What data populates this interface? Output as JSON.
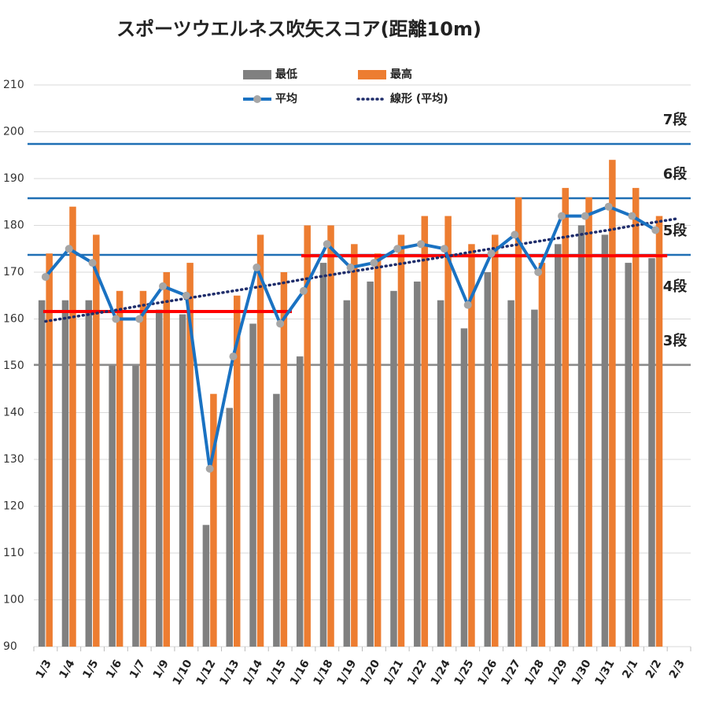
{
  "chart_data": {
    "type": "bar_line",
    "title": "スポーツウエルネス吹矢スコア(距離10m)",
    "categories": [
      "1/3",
      "1/4",
      "1/5",
      "1/6",
      "1/7",
      "1/9",
      "1/10",
      "1/12",
      "1/13",
      "1/14",
      "1/15",
      "1/16",
      "1/18",
      "1/19",
      "1/20",
      "1/21",
      "1/22",
      "1/24",
      "1/25",
      "1/26",
      "1/27",
      "1/28",
      "1/29",
      "1/30",
      "1/31",
      "2/1",
      "2/2",
      "2/3"
    ],
    "ylim": [
      90,
      210
    ],
    "yticks": [
      90,
      100,
      110,
      120,
      130,
      140,
      150,
      160,
      170,
      180,
      190,
      200,
      210
    ],
    "grid": true,
    "bars": [
      {
        "name": "最低",
        "color": "#808080",
        "values": [
          164,
          164,
          164,
          150,
          150,
          162,
          161,
          116,
          141,
          159,
          144,
          152,
          172,
          164,
          168,
          166,
          168,
          164,
          158,
          170,
          164,
          162,
          176,
          180,
          178,
          172,
          173,
          null
        ]
      },
      {
        "name": "最高",
        "color": "#ed7d31",
        "values": [
          174,
          184,
          178,
          166,
          166,
          170,
          172,
          144,
          165,
          178,
          170,
          180,
          180,
          176,
          174,
          178,
          182,
          182,
          176,
          178,
          186,
          172,
          188,
          186,
          194,
          188,
          182,
          null
        ]
      }
    ],
    "line": {
      "name": "平均",
      "color": "#1a72c2",
      "marker_color": "#a6a6a6",
      "values": [
        169,
        175,
        172,
        160,
        160,
        167,
        165,
        128,
        152,
        171,
        159,
        166,
        176,
        171,
        172,
        175,
        176,
        175,
        163,
        174,
        178,
        170,
        182,
        182,
        184,
        182,
        179,
        null
      ]
    },
    "trend": {
      "name": "線形 (平均)",
      "color": "#1f2d6b",
      "values": [
        159.5,
        160.3,
        161.1,
        161.9,
        162.8,
        163.6,
        164.4,
        165.2,
        166.0,
        166.8,
        167.6,
        168.5,
        169.3,
        170.1,
        170.9,
        171.7,
        172.5,
        173.3,
        174.2,
        175.0,
        175.8,
        176.6,
        177.4,
        178.2,
        179.0,
        179.9,
        180.7,
        181.5
      ]
    },
    "levels": [
      {
        "label": "7段",
        "value": 197.4,
        "line": true,
        "color": "#1f6fb4",
        "label_color": "#222"
      },
      {
        "label": "6段",
        "value": 185.8,
        "line": true,
        "color": "#1f6fb4",
        "label_color": "#222"
      },
      {
        "label": "5段",
        "value": 173.7,
        "line": true,
        "color": "#1f6fb4",
        "label_color": "#2e75b6"
      },
      {
        "label": "4段",
        "value": 163.8,
        "line": false,
        "color": "#1f6fb4",
        "label_color": "#222"
      },
      {
        "label": "3段",
        "value": 150.2,
        "line": true,
        "color": "#8c8c8c",
        "label_color": "#222"
      }
    ],
    "targets": [
      {
        "value": 161.6,
        "from": 0,
        "to": 10,
        "color": "#ff0000"
      },
      {
        "value": 173.5,
        "from": 11,
        "to": 26,
        "color": "#ff0000"
      }
    ]
  }
}
